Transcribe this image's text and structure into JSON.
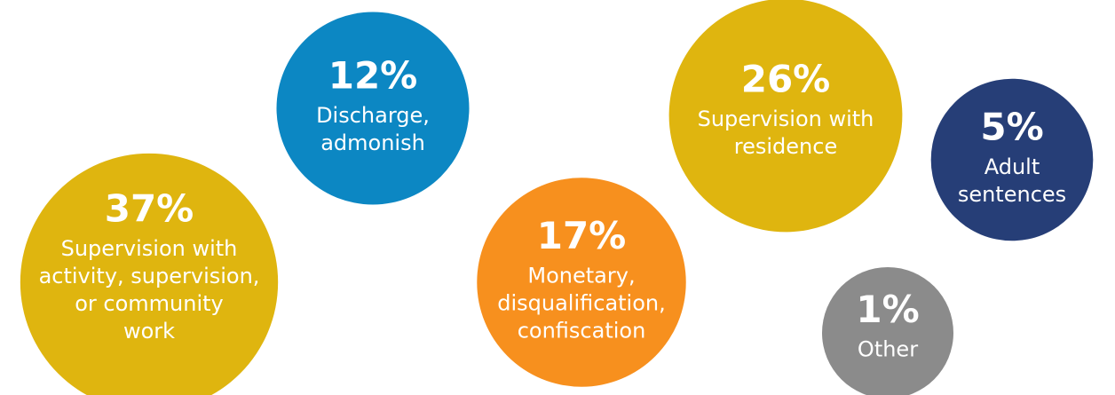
{
  "chart_data": {
    "type": "bubble",
    "categories": [
      [
        "Supervision with",
        "activity, supervision,",
        "or community",
        "work"
      ],
      [
        "Discharge,",
        "admonish"
      ],
      [
        "Monetary,",
        "disqualification,",
        "confiscation"
      ],
      [
        "Supervision with",
        "residence"
      ],
      [
        "Adult",
        "sentences"
      ],
      [
        "Other"
      ]
    ],
    "values": [
      37,
      12,
      17,
      26,
      5,
      1
    ],
    "value_labels": [
      "37%",
      "12%",
      "17%",
      "26%",
      "5%",
      "1%"
    ],
    "colors": [
      "#dfb50f",
      "#0c87c3",
      "#f7901e",
      "#dfb50f",
      "#263e77",
      "#8b8b8b"
    ]
  }
}
